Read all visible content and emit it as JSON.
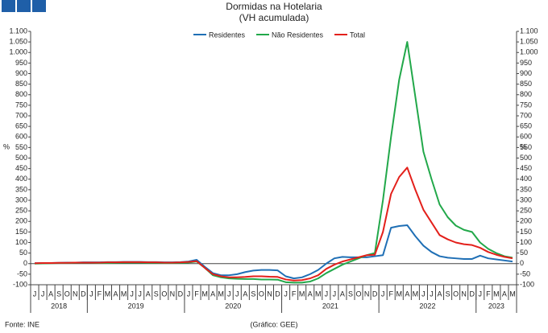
{
  "chart_data": {
    "type": "line",
    "title": "Dormidas na Hotelaria",
    "subtitle": "(VH acumulada)",
    "y_label": "%",
    "y2_label": "%",
    "source": "Fonte: INE",
    "credit": "(Gráfico: GEE)",
    "categories": [
      "J",
      "J",
      "A",
      "S",
      "O",
      "N",
      "D",
      "J",
      "F",
      "M",
      "A",
      "M",
      "J",
      "J",
      "A",
      "S",
      "O",
      "N",
      "D",
      "J",
      "F",
      "M",
      "A",
      "M",
      "J",
      "J",
      "A",
      "S",
      "O",
      "N",
      "D",
      "J",
      "F",
      "M",
      "A",
      "M",
      "J",
      "J",
      "A",
      "S",
      "O",
      "N",
      "D",
      "J",
      "F",
      "M",
      "A",
      "M",
      "J",
      "J",
      "A",
      "S",
      "O",
      "N",
      "D",
      "J",
      "F",
      "M",
      "A",
      "M"
    ],
    "x_groups": [
      {
        "label": "2018",
        "span": 7
      },
      {
        "label": "2019",
        "span": 12
      },
      {
        "label": "2020",
        "span": 12
      },
      {
        "label": "2021",
        "span": 12
      },
      {
        "label": "2022",
        "span": 12
      },
      {
        "label": "2023",
        "span": 5
      }
    ],
    "ylim": [
      -100,
      1100
    ],
    "yticks": [
      -100,
      -50,
      0,
      50,
      100,
      150,
      200,
      250,
      300,
      350,
      400,
      450,
      500,
      550,
      600,
      650,
      700,
      750,
      800,
      850,
      900,
      950,
      {
        "value": 1000,
        "label": "1.000"
      },
      {
        "value": 1050,
        "label": "1.050"
      },
      {
        "value": 1100,
        "label": "1.100"
      }
    ],
    "y2lim": [
      -100,
      1100
    ],
    "y2ticks": [
      -100,
      -50,
      0,
      50,
      100,
      150,
      200,
      250,
      300,
      350,
      400,
      450,
      500,
      550,
      600,
      650,
      700,
      750,
      800,
      850,
      900,
      950,
      {
        "value": 1000,
        "label": "1.000"
      },
      {
        "value": 1050,
        "label": "1.050"
      },
      {
        "value": 1100,
        "label": "1.100"
      }
    ],
    "series": [
      {
        "name": "Residentes",
        "color": "#1f6fb5",
        "values": [
          2,
          3,
          3,
          4,
          5,
          5,
          6,
          6,
          6,
          7,
          7,
          8,
          8,
          8,
          7,
          7,
          6,
          6,
          7,
          10,
          18,
          -15,
          -45,
          -55,
          -55,
          -50,
          -40,
          -33,
          -30,
          -30,
          -32,
          -60,
          -70,
          -65,
          -50,
          -30,
          0,
          25,
          32,
          30,
          30,
          30,
          35,
          40,
          170,
          178,
          182,
          130,
          85,
          55,
          35,
          28,
          25,
          22,
          22,
          38,
          25,
          20,
          15,
          10
        ]
      },
      {
        "name": "Não Residentes",
        "color": "#22a84a",
        "values": [
          0,
          1,
          2,
          3,
          3,
          4,
          4,
          4,
          3,
          3,
          4,
          5,
          5,
          5,
          4,
          4,
          3,
          3,
          4,
          5,
          10,
          -20,
          -55,
          -65,
          -70,
          -72,
          -73,
          -73,
          -75,
          -75,
          -76,
          -88,
          -90,
          -90,
          -85,
          -70,
          -45,
          -25,
          -5,
          10,
          25,
          40,
          50,
          300,
          600,
          870,
          1050,
          790,
          530,
          400,
          280,
          220,
          180,
          160,
          150,
          100,
          70,
          50,
          35,
          28
        ]
      },
      {
        "name": "Total",
        "color": "#e3201b",
        "values": [
          2,
          3,
          3,
          4,
          4,
          5,
          5,
          5,
          5,
          6,
          6,
          7,
          7,
          7,
          6,
          6,
          5,
          5,
          6,
          8,
          12,
          -20,
          -50,
          -60,
          -65,
          -65,
          -63,
          -60,
          -60,
          -62,
          -63,
          -75,
          -80,
          -78,
          -70,
          -55,
          -25,
          -5,
          10,
          20,
          30,
          40,
          42,
          150,
          330,
          410,
          455,
          350,
          255,
          195,
          135,
          115,
          100,
          92,
          88,
          75,
          55,
          42,
          32,
          25
        ]
      }
    ]
  }
}
